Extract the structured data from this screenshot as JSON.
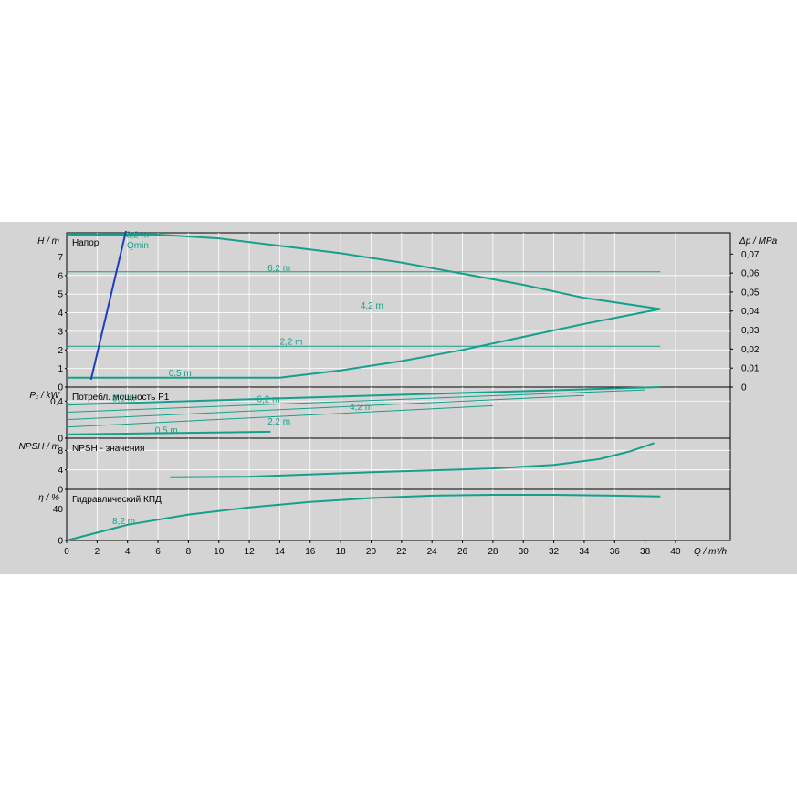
{
  "chart_data": {
    "type": "line",
    "x_axis": {
      "label": "Q / m³/h",
      "ticks": [
        0,
        2,
        4,
        6,
        8,
        10,
        12,
        14,
        16,
        18,
        20,
        22,
        24,
        26,
        28,
        30,
        32,
        34,
        36,
        38,
        40
      ],
      "range": [
        0,
        43.6
      ]
    },
    "colors": {
      "curve": "#14a08c",
      "qmin": "#1a3fc0",
      "background": "#d4d4d4",
      "grid": "#ffffff"
    },
    "panels": [
      {
        "id": "head",
        "title": "Напор",
        "ylabel": "H / m",
        "ylabel_right": "Δp / MPa",
        "ylim": [
          0,
          8.3
        ],
        "yticks": [
          0,
          1,
          2,
          3,
          4,
          5,
          6,
          7
        ],
        "yticks_right": [
          "0",
          "0,01",
          "0,02",
          "0,03",
          "0,04",
          "0,05",
          "0,06",
          "0,07"
        ],
        "yticks_right_values": [
          0,
          0.01,
          0.02,
          0.03,
          0.04,
          0.05,
          0.06,
          0.07
        ],
        "series": [
          {
            "name": "8,2 m",
            "x": [
              0,
              6,
              10,
              14,
              18,
              22,
              26,
              30,
              34,
              39
            ],
            "y": [
              8.2,
              8.2,
              8.0,
              7.6,
              7.2,
              6.7,
              6.1,
              5.5,
              4.8,
              4.2
            ],
            "width": 2
          },
          {
            "name": "6,2 m",
            "x": [
              0,
              39
            ],
            "y": [
              6.2,
              6.2
            ],
            "width": 1
          },
          {
            "name": "4,2 m",
            "x": [
              0,
              39
            ],
            "y": [
              4.2,
              4.2
            ],
            "width": 1
          },
          {
            "name": "2,2 m",
            "x": [
              0,
              39
            ],
            "y": [
              2.2,
              2.2
            ],
            "width": 1
          },
          {
            "name": "0,5 m",
            "x": [
              0,
              14,
              18,
              22,
              26,
              30,
              34,
              39
            ],
            "y": [
              0.5,
              0.5,
              0.9,
              1.4,
              2.0,
              2.7,
              3.4,
              4.2
            ],
            "width": 2
          }
        ],
        "labels": [
          {
            "text": "8,2 m",
            "x": 3.9,
            "y": 8.2
          },
          {
            "text": "6,2 m",
            "x": 13.2,
            "y": 6.4
          },
          {
            "text": "4,2 m",
            "x": 19.3,
            "y": 4.4
          },
          {
            "text": "2,2 m",
            "x": 14.0,
            "y": 2.45
          },
          {
            "text": "0,5 m",
            "x": 6.7,
            "y": 0.75
          }
        ],
        "qmin": {
          "label": "Qmin",
          "x": [
            1.6,
            3.9
          ],
          "y": [
            0.4,
            8.7
          ]
        }
      },
      {
        "id": "power",
        "title": "Потребл. мощность P1",
        "ylabel": "P₁ / kW",
        "ylim": [
          0,
          0.55
        ],
        "yticks": [
          0,
          0.4
        ],
        "ytick_labels": [
          "0",
          "0,4"
        ],
        "series": [
          {
            "name": "8,2 m",
            "x": [
              0,
              39
            ],
            "y": [
              0.36,
              0.55
            ],
            "width": 2
          },
          {
            "name": "6,2 m",
            "x": [
              0,
              38
            ],
            "y": [
              0.28,
              0.52
            ],
            "width": 1
          },
          {
            "name": "4,2 m",
            "x": [
              0,
              34
            ],
            "y": [
              0.2,
              0.46
            ],
            "width": 1
          },
          {
            "name": "2,2 m",
            "x": [
              0,
              28
            ],
            "y": [
              0.12,
              0.35
            ],
            "width": 1
          },
          {
            "name": "0,5 m",
            "x": [
              0,
              13.4
            ],
            "y": [
              0.04,
              0.07
            ],
            "width": 2
          }
        ],
        "labels": [
          {
            "text": "8,2 m",
            "x": 3.0,
            "y": 0.43
          },
          {
            "text": "6,2 m",
            "x": 12.5,
            "y": 0.42
          },
          {
            "text": "4,2 m",
            "x": 18.6,
            "y": 0.34
          },
          {
            "text": "2,2 m",
            "x": 13.2,
            "y": 0.18
          },
          {
            "text": "0,5 m",
            "x": 5.8,
            "y": 0.09
          }
        ]
      },
      {
        "id": "npsh",
        "title": "NPSH - значения",
        "ylabel": "NPSH / m",
        "ylim": [
          0,
          10.5
        ],
        "yticks": [
          0,
          4,
          8
        ],
        "ytick_labels": [
          "0",
          "4",
          "8"
        ],
        "series": [
          {
            "name": "",
            "x": [
              6.8,
              12,
              20,
              28,
              32,
              35,
              37,
              38.6
            ],
            "y": [
              2.5,
              2.6,
              3.5,
              4.3,
              5.0,
              6.2,
              7.8,
              9.5
            ],
            "width": 2
          }
        ],
        "labels": []
      },
      {
        "id": "efficiency",
        "title": "Гидравлический КПД",
        "ylabel": "η / %",
        "ylim": [
          0,
          65
        ],
        "yticks": [
          0,
          40
        ],
        "ytick_labels": [
          "0",
          "40"
        ],
        "series": [
          {
            "name": "8,2 m",
            "x": [
              0,
              4,
              8,
              12,
              16,
              20,
              24,
              28,
              32,
              36,
              39
            ],
            "y": [
              0,
              20,
              33,
              42,
              49,
              54,
              57,
              58,
              58,
              57,
              56
            ],
            "width": 2
          }
        ],
        "labels": [
          {
            "text": "8,2 m",
            "x": 3.0,
            "y": 25
          }
        ]
      }
    ]
  }
}
